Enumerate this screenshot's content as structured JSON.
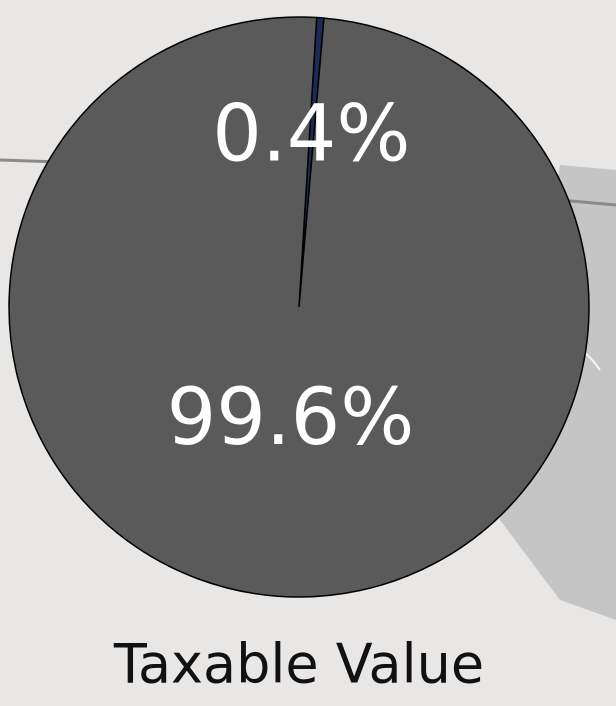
{
  "chart_data": {
    "type": "pie",
    "title": "Taxable Value",
    "categories": [
      null,
      null
    ],
    "values": [
      0.4,
      99.6
    ],
    "value_labels": [
      "0.4%",
      "99.6%"
    ],
    "colors": [
      "#1c2a55",
      "#5a5a5a"
    ]
  }
}
